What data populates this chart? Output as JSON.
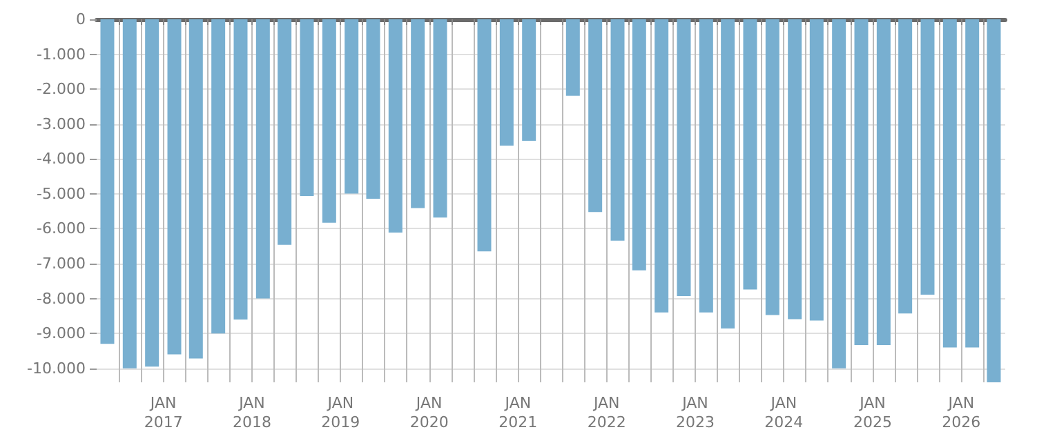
{
  "chart_data": {
    "type": "bar",
    "color": "#78afd0",
    "x": [
      "2016-05-15",
      "2016-08-15",
      "2016-11-15",
      "2017-02-15",
      "2017-05-15",
      "2017-08-15",
      "2017-11-15",
      "2018-02-15",
      "2018-05-15",
      "2018-08-15",
      "2018-11-15",
      "2019-02-15",
      "2019-05-15",
      "2019-08-15",
      "2019-11-15",
      "2020-02-15",
      "2020-05-15",
      "2020-08-15",
      "2020-11-15",
      "2021-02-15",
      "2021-05-15",
      "2021-08-15",
      "2021-11-15",
      "2022-02-15",
      "2022-05-15",
      "2022-08-15",
      "2022-11-15",
      "2023-02-15",
      "2023-05-15",
      "2023-08-15",
      "2023-11-15",
      "2024-02-15",
      "2024-05-15",
      "2024-08-15",
      "2024-11-15",
      "2025-02-15",
      "2025-05-15",
      "2025-08-15",
      "2025-11-15",
      "2026-02-15",
      "2026-05-15"
    ],
    "values": [
      -9300,
      -10000,
      -9950,
      -9600,
      -9720,
      -9000,
      -8600,
      -8000,
      -6460,
      -5060,
      -5830,
      -4990,
      -5140,
      -6110,
      -5410,
      -5680,
      null,
      -6650,
      -3620,
      -3480,
      null,
      -2190,
      -5520,
      -6340,
      -7190,
      -8400,
      -7930,
      -8400,
      -8860,
      -7740,
      -8470,
      -8590,
      -8630,
      -10000,
      -9330,
      -9330,
      -8430,
      -7890,
      -9400,
      -9400,
      -10400
    ],
    "xlim": [
      "2016-04",
      "2026-07"
    ],
    "xticks": [
      {
        "value": "2016-07",
        "label": null
      },
      {
        "value": "2016-10",
        "label": null
      },
      {
        "value": "2017-01",
        "label": "JAN\n2017"
      },
      {
        "value": "2017-04",
        "label": null
      },
      {
        "value": "2017-07",
        "label": null
      },
      {
        "value": "2017-10",
        "label": null
      },
      {
        "value": "2018-01",
        "label": "JAN\n2018"
      },
      {
        "value": "2018-04",
        "label": null
      },
      {
        "value": "2018-07",
        "label": null
      },
      {
        "value": "2018-10",
        "label": null
      },
      {
        "value": "2019-01",
        "label": "JAN\n2019"
      },
      {
        "value": "2019-04",
        "label": null
      },
      {
        "value": "2019-07",
        "label": null
      },
      {
        "value": "2019-10",
        "label": null
      },
      {
        "value": "2020-01",
        "label": "JAN\n2020"
      },
      {
        "value": "2020-04",
        "label": null
      },
      {
        "value": "2020-07",
        "label": null
      },
      {
        "value": "2020-10",
        "label": null
      },
      {
        "value": "2021-01",
        "label": "JAN\n2021"
      },
      {
        "value": "2021-04",
        "label": null
      },
      {
        "value": "2021-07",
        "label": null
      },
      {
        "value": "2021-10",
        "label": null
      },
      {
        "value": "2022-01",
        "label": "JAN\n2022"
      },
      {
        "value": "2022-04",
        "label": null
      },
      {
        "value": "2022-07",
        "label": null
      },
      {
        "value": "2022-10",
        "label": null
      },
      {
        "value": "2023-01",
        "label": "JAN\n2023"
      },
      {
        "value": "2023-04",
        "label": null
      },
      {
        "value": "2023-07",
        "label": null
      },
      {
        "value": "2023-10",
        "label": null
      },
      {
        "value": "2024-01",
        "label": "JAN\n2024"
      },
      {
        "value": "2024-04",
        "label": null
      },
      {
        "value": "2024-07",
        "label": null
      },
      {
        "value": "2024-10",
        "label": null
      },
      {
        "value": "2025-01",
        "label": "JAN\n2025"
      },
      {
        "value": "2025-04",
        "label": null
      },
      {
        "value": "2025-07",
        "label": null
      },
      {
        "value": "2025-10",
        "label": null
      },
      {
        "value": "2026-01",
        "label": "JAN\n2026"
      },
      {
        "value": "2026-04",
        "label": null
      }
    ],
    "ylim": [
      -10400,
      0
    ],
    "yticks": [
      {
        "value": 0,
        "label": "0"
      },
      {
        "value": -1000,
        "label": "-1.000"
      },
      {
        "value": -2000,
        "label": "-2.000"
      },
      {
        "value": -3000,
        "label": "-3.000"
      },
      {
        "value": -4000,
        "label": "-4.000"
      },
      {
        "value": -5000,
        "label": "-5.000"
      },
      {
        "value": -6000,
        "label": "-6.000"
      },
      {
        "value": -7000,
        "label": "-7.000"
      },
      {
        "value": -8000,
        "label": "-8.000"
      },
      {
        "value": -9000,
        "label": "-9.000"
      },
      {
        "value": -10000,
        "label": "-10.000"
      }
    ],
    "grid": true
  }
}
